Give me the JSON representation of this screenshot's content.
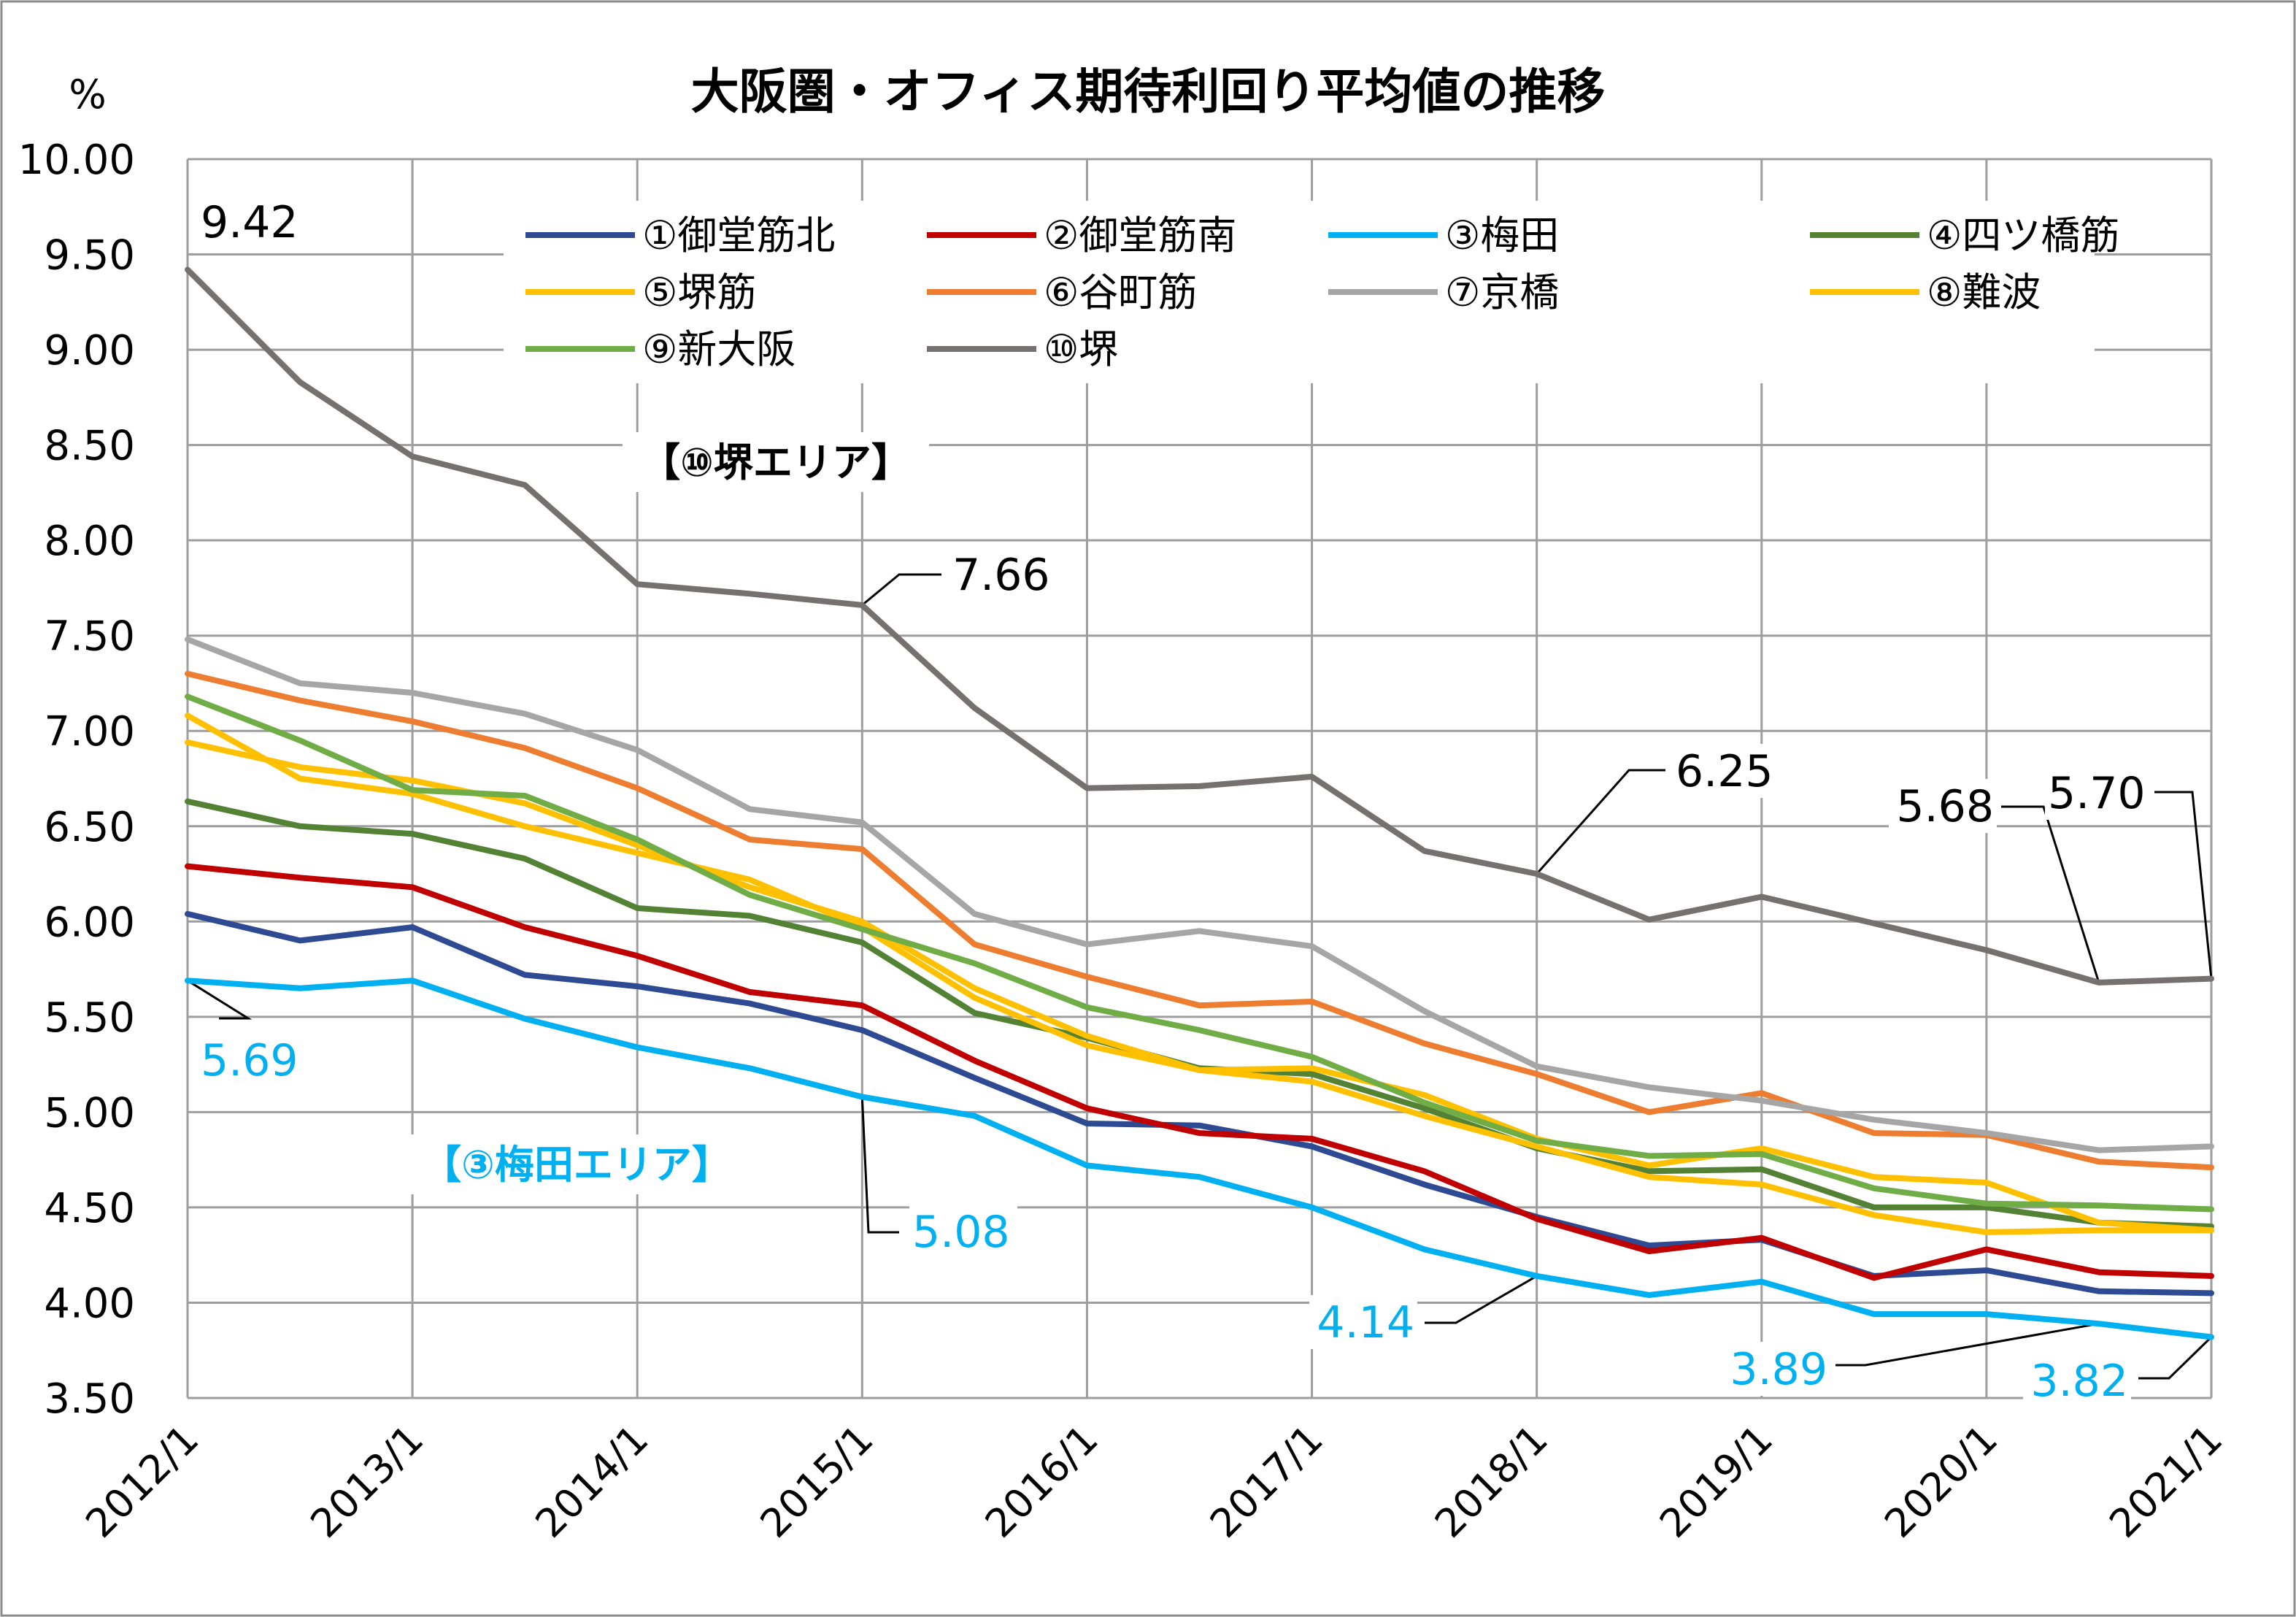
{
  "chart_data": {
    "type": "line",
    "title": "大阪圏・オフィス期待利回り平均値の推移",
    "ylabel": "%",
    "xlabel": "",
    "ylim": [
      3.5,
      10.0
    ],
    "yticks": [
      "10.00",
      "9.50",
      "9.00",
      "8.50",
      "8.00",
      "7.50",
      "7.00",
      "6.50",
      "6.00",
      "5.50",
      "5.00",
      "4.50",
      "4.00",
      "3.50"
    ],
    "yticks_values": [
      10.0,
      9.5,
      9.0,
      8.5,
      8.0,
      7.5,
      7.0,
      6.5,
      6.0,
      5.5,
      5.0,
      4.5,
      4.0,
      3.5
    ],
    "x": [
      "2012/1",
      "2012/7",
      "2013/1",
      "2013/7",
      "2014/1",
      "2014/7",
      "2015/1",
      "2015/7",
      "2016/1",
      "2016/7",
      "2017/1",
      "2017/7",
      "2018/1",
      "2018/7",
      "2019/1",
      "2019/7",
      "2020/1",
      "2020/7",
      "2021/1"
    ],
    "xticks": [
      "2012/1",
      "2013/1",
      "2014/1",
      "2015/1",
      "2016/1",
      "2017/1",
      "2018/1",
      "2019/1",
      "2020/1",
      "2021/1"
    ],
    "grid": true,
    "legend_position": "top",
    "series": [
      {
        "name": "①御堂筋北",
        "color": "#2E4A93",
        "values": [
          6.04,
          5.9,
          5.97,
          5.72,
          5.66,
          5.57,
          5.43,
          5.18,
          4.94,
          4.93,
          4.82,
          4.62,
          4.45,
          4.3,
          4.33,
          4.14,
          4.17,
          4.06,
          4.05
        ]
      },
      {
        "name": "②御堂筋南",
        "color": "#C00000",
        "values": [
          6.29,
          6.23,
          6.18,
          5.97,
          5.82,
          5.63,
          5.56,
          5.27,
          5.02,
          4.89,
          4.86,
          4.69,
          4.44,
          4.27,
          4.34,
          4.13,
          4.28,
          4.16,
          4.14
        ]
      },
      {
        "name": "③梅田",
        "color": "#00B0F0",
        "values": [
          5.69,
          5.65,
          5.69,
          5.49,
          5.34,
          5.23,
          5.08,
          4.98,
          4.72,
          4.66,
          4.5,
          4.28,
          4.14,
          4.04,
          4.11,
          3.94,
          3.94,
          3.89,
          3.82
        ]
      },
      {
        "name": "④四ツ橋筋",
        "color": "#548235",
        "values": [
          6.63,
          6.5,
          6.46,
          6.33,
          6.07,
          6.03,
          5.89,
          5.52,
          5.39,
          5.23,
          5.2,
          5.02,
          4.81,
          4.69,
          4.7,
          4.5,
          4.5,
          4.42,
          4.4
        ]
      },
      {
        "name": "⑤堺筋",
        "color": "#FFC000",
        "values": [
          7.08,
          6.75,
          6.67,
          6.5,
          6.36,
          6.22,
          5.97,
          5.6,
          5.35,
          5.22,
          5.16,
          4.98,
          4.82,
          4.66,
          4.62,
          4.46,
          4.37,
          4.38,
          4.38
        ]
      },
      {
        "name": "⑥谷町筋",
        "color": "#ED7D31",
        "values": [
          7.3,
          7.16,
          7.05,
          6.91,
          6.7,
          6.43,
          6.38,
          5.88,
          5.71,
          5.56,
          5.58,
          5.36,
          5.2,
          5.0,
          5.1,
          4.89,
          4.88,
          4.74,
          4.71
        ]
      },
      {
        "name": "⑦京橋",
        "color": "#A6A6A6",
        "values": [
          7.48,
          7.25,
          7.2,
          7.09,
          6.9,
          6.59,
          6.52,
          6.04,
          5.88,
          5.95,
          5.87,
          5.53,
          5.24,
          5.13,
          5.06,
          4.96,
          4.89,
          4.8,
          4.82
        ]
      },
      {
        "name": "⑧難波",
        "color": "#FFC000",
        "values": [
          6.94,
          6.81,
          6.74,
          6.62,
          6.4,
          6.18,
          6.0,
          5.65,
          5.4,
          5.22,
          5.23,
          5.09,
          4.86,
          4.72,
          4.81,
          4.66,
          4.63,
          4.42,
          4.38
        ]
      },
      {
        "name": "⑨新大阪",
        "color": "#70AD47",
        "values": [
          7.18,
          6.95,
          6.69,
          6.66,
          6.43,
          6.14,
          5.96,
          5.78,
          5.55,
          5.43,
          5.29,
          5.05,
          4.85,
          4.77,
          4.78,
          4.6,
          4.52,
          4.51,
          4.49
        ]
      },
      {
        "name": "⑩堺",
        "color": "#767171",
        "values": [
          9.42,
          8.83,
          8.44,
          8.29,
          7.77,
          7.72,
          7.66,
          7.12,
          6.7,
          6.71,
          6.76,
          6.37,
          6.25,
          6.01,
          6.13,
          5.99,
          5.85,
          5.68,
          5.7
        ]
      }
    ],
    "annotations": [
      {
        "text": "9.42",
        "color": "#000000"
      },
      {
        "text": "7.66",
        "color": "#000000"
      },
      {
        "text": "6.25",
        "color": "#000000"
      },
      {
        "text": "5.68",
        "color": "#000000"
      },
      {
        "text": "5.70",
        "color": "#000000"
      },
      {
        "text": "5.69",
        "color": "#00B0F0"
      },
      {
        "text": "5.08",
        "color": "#00B0F0"
      },
      {
        "text": "4.14",
        "color": "#00B0F0"
      },
      {
        "text": "3.89",
        "color": "#00B0F0"
      },
      {
        "text": "3.82",
        "color": "#00B0F0"
      }
    ],
    "area_labels": [
      {
        "text": "【⑩堺エリア】",
        "color": "#000000"
      },
      {
        "text": "【③梅田エリア】",
        "color": "#00B0F0"
      }
    ]
  }
}
